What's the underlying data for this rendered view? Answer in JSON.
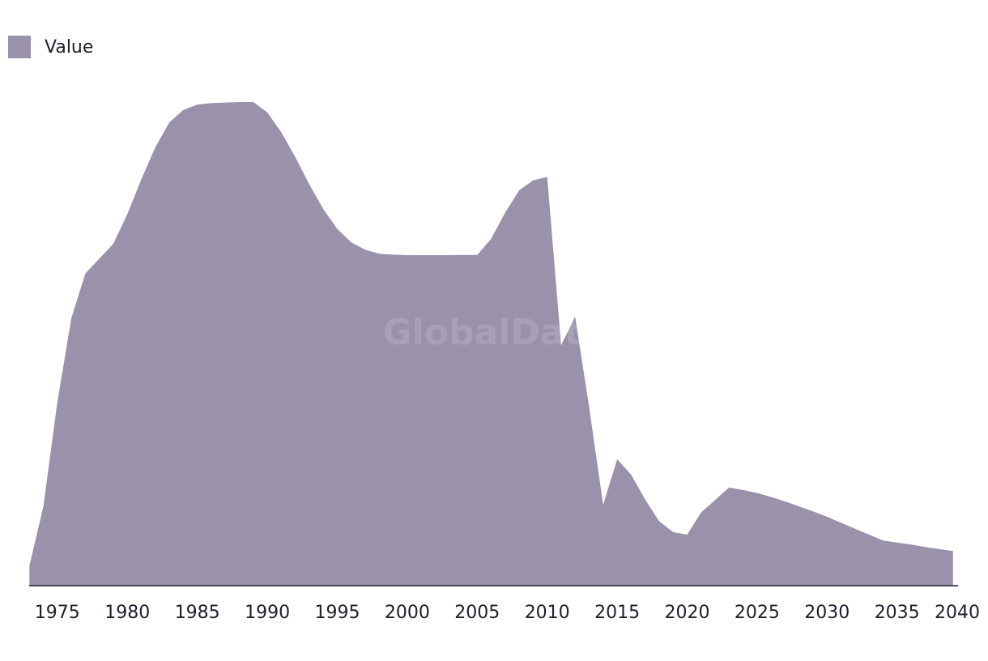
{
  "chart_data": {
    "type": "area",
    "legend": {
      "position": "top-left",
      "items": [
        {
          "name": "Value",
          "color": "#9a91aa"
        }
      ]
    },
    "series": [
      {
        "name": "Value",
        "color": "#9a91aa",
        "x": [
          1973,
          1974,
          1975,
          1976,
          1977,
          1978,
          1979,
          1980,
          1981,
          1982,
          1983,
          1984,
          1985,
          1986,
          1987,
          1988,
          1989,
          1990,
          1991,
          1992,
          1993,
          1994,
          1995,
          1996,
          1997,
          1998,
          1999,
          2000,
          2001,
          2002,
          2003,
          2004,
          2005,
          2006,
          2007,
          2008,
          2009,
          2010,
          2011,
          2012,
          2013,
          2014,
          2015,
          2016,
          2017,
          2018,
          2019,
          2020,
          2021,
          2022,
          2023,
          2024,
          2025,
          2026,
          2027,
          2028,
          2029,
          2030,
          2031,
          2032,
          2033,
          2034,
          2035,
          2036,
          2037,
          2038,
          2039
        ],
        "values": [
          4,
          16,
          37,
          54,
          63,
          66,
          69,
          75,
          82,
          88.5,
          93.5,
          96,
          97.1,
          97.4,
          97.5,
          97.6,
          97.6,
          95.5,
          91.5,
          86.5,
          81,
          76,
          72,
          69.3,
          67.8,
          67,
          66.8,
          66.7,
          66.7,
          66.7,
          66.7,
          66.75,
          66.75,
          70,
          75.3,
          79.8,
          81.8,
          82.5,
          48.5,
          54.3,
          36,
          16.3,
          25.5,
          22.4,
          17.4,
          13,
          10.8,
          10.3,
          14.8,
          17.3,
          19.8,
          19.3,
          18.7,
          17.9,
          17,
          16,
          15,
          13.9,
          12.7,
          11.5,
          10.3,
          9.1,
          8.7,
          8.3,
          7.8,
          7.4,
          7
        ]
      }
    ],
    "xlim": [
      1970.9,
      2041.5
    ],
    "ylim": [
      0,
      100
    ],
    "x_ticks": [
      "1975",
      "1980",
      "1985",
      "1990",
      "1995",
      "2000",
      "2005",
      "2010",
      "2015",
      "2020",
      "2025",
      "2030",
      "2035",
      "2040"
    ],
    "grid": false,
    "watermark": "GlobalData"
  }
}
